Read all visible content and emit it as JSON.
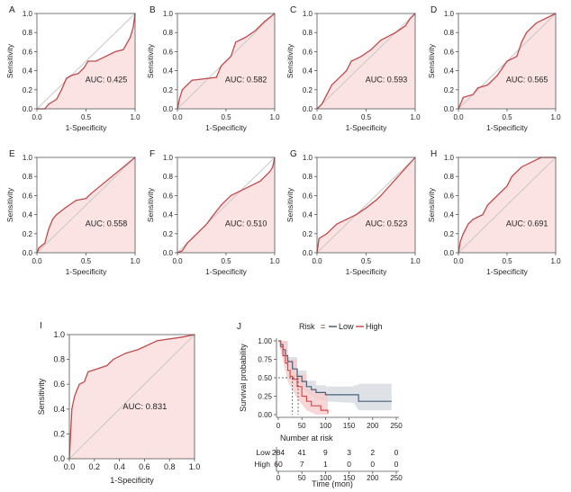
{
  "colors": {
    "roc_line": "#c24a4a",
    "roc_fill": "#fbe3e3",
    "diagonal": "#c8c8c8",
    "axis": "#555555",
    "low": "#4a5f7a",
    "high": "#d84a4a",
    "low_band": "#d3d7de",
    "high_band": "#f7c9c9"
  },
  "chart_data": [
    {
      "type": "line",
      "panel": "A",
      "xlabel": "1-Specificity",
      "ylabel": "Sensitivity",
      "auc_text": "AUC: 0.425",
      "xlim": [
        0,
        1
      ],
      "ylim": [
        0,
        1
      ],
      "xticks": [
        "0.0",
        "0.5",
        "1.0"
      ],
      "yticks": [
        "0.0",
        "0.2",
        "0.4",
        "0.6",
        "0.8",
        "1.0"
      ],
      "points": [
        [
          0,
          0
        ],
        [
          0.08,
          0
        ],
        [
          0.12,
          0.05
        ],
        [
          0.2,
          0.1
        ],
        [
          0.25,
          0.2
        ],
        [
          0.3,
          0.32
        ],
        [
          0.35,
          0.35
        ],
        [
          0.42,
          0.37
        ],
        [
          0.48,
          0.43
        ],
        [
          0.52,
          0.5
        ],
        [
          0.6,
          0.5
        ],
        [
          0.7,
          0.55
        ],
        [
          0.8,
          0.6
        ],
        [
          0.88,
          0.62
        ],
        [
          0.95,
          0.75
        ],
        [
          0.98,
          0.85
        ],
        [
          1,
          1
        ]
      ]
    },
    {
      "type": "line",
      "panel": "B",
      "xlabel": "1-Specificity",
      "ylabel": "Sensitivity",
      "auc_text": "AUC: 0.582",
      "xlim": [
        0,
        1
      ],
      "ylim": [
        0,
        1
      ],
      "xticks": [
        "0.0",
        "0.5",
        "1.0"
      ],
      "yticks": [
        "0.0",
        "0.2",
        "0.4",
        "0.6",
        "0.8",
        "1.0"
      ],
      "points": [
        [
          0,
          0
        ],
        [
          0.02,
          0.1
        ],
        [
          0.05,
          0.2
        ],
        [
          0.1,
          0.25
        ],
        [
          0.15,
          0.3
        ],
        [
          0.4,
          0.33
        ],
        [
          0.45,
          0.45
        ],
        [
          0.5,
          0.5
        ],
        [
          0.55,
          0.55
        ],
        [
          0.6,
          0.7
        ],
        [
          0.7,
          0.75
        ],
        [
          0.8,
          0.82
        ],
        [
          0.9,
          0.92
        ],
        [
          1,
          1
        ]
      ]
    },
    {
      "type": "line",
      "panel": "C",
      "xlabel": "1-Specificity",
      "ylabel": "Sensitivity",
      "auc_text": "AUC: 0.593",
      "xlim": [
        0,
        1
      ],
      "ylim": [
        0,
        1
      ],
      "xticks": [
        "0.0",
        "0.5",
        "1.0"
      ],
      "yticks": [
        "0.0",
        "0.2",
        "0.4",
        "0.6",
        "0.8",
        "1.0"
      ],
      "points": [
        [
          0,
          0
        ],
        [
          0.05,
          0.05
        ],
        [
          0.1,
          0.15
        ],
        [
          0.15,
          0.25
        ],
        [
          0.2,
          0.3
        ],
        [
          0.3,
          0.4
        ],
        [
          0.35,
          0.5
        ],
        [
          0.45,
          0.55
        ],
        [
          0.55,
          0.62
        ],
        [
          0.65,
          0.72
        ],
        [
          0.8,
          0.8
        ],
        [
          0.9,
          0.87
        ],
        [
          0.95,
          0.95
        ],
        [
          1,
          1
        ]
      ]
    },
    {
      "type": "line",
      "panel": "D",
      "xlabel": "1-Specificity",
      "ylabel": "Sensitivity",
      "auc_text": "AUC: 0.565",
      "xlim": [
        0,
        1
      ],
      "ylim": [
        0,
        1
      ],
      "xticks": [
        "0.0",
        "0.5",
        "1.0"
      ],
      "yticks": [
        "0.0",
        "0.2",
        "0.4",
        "0.6",
        "0.8",
        "1.0"
      ],
      "points": [
        [
          0,
          0
        ],
        [
          0.02,
          0.05
        ],
        [
          0.05,
          0.12
        ],
        [
          0.15,
          0.15
        ],
        [
          0.2,
          0.22
        ],
        [
          0.3,
          0.25
        ],
        [
          0.4,
          0.35
        ],
        [
          0.5,
          0.5
        ],
        [
          0.6,
          0.55
        ],
        [
          0.65,
          0.7
        ],
        [
          0.7,
          0.8
        ],
        [
          0.8,
          0.9
        ],
        [
          0.9,
          0.95
        ],
        [
          1,
          1
        ]
      ]
    },
    {
      "type": "line",
      "panel": "E",
      "xlabel": "1-Specificity",
      "ylabel": "Sensitivity",
      "auc_text": "AUC: 0.558",
      "xlim": [
        0,
        1
      ],
      "ylim": [
        0,
        1
      ],
      "xticks": [
        "0.0",
        "0.5",
        "1.0"
      ],
      "yticks": [
        "0.0",
        "0.2",
        "0.4",
        "0.6",
        "0.8",
        "1.0"
      ],
      "points": [
        [
          0,
          0
        ],
        [
          0.02,
          0.05
        ],
        [
          0.08,
          0.1
        ],
        [
          0.12,
          0.25
        ],
        [
          0.16,
          0.35
        ],
        [
          0.2,
          0.4
        ],
        [
          0.3,
          0.48
        ],
        [
          0.4,
          0.55
        ],
        [
          0.5,
          0.57
        ],
        [
          0.55,
          0.62
        ],
        [
          1,
          1
        ]
      ]
    },
    {
      "type": "line",
      "panel": "F",
      "xlabel": "1-Specificity",
      "ylabel": "Sensitivity",
      "auc_text": "AUC: 0.510",
      "xlim": [
        0,
        1
      ],
      "ylim": [
        0,
        1
      ],
      "xticks": [
        "0.0",
        "0.5",
        "1.0"
      ],
      "yticks": [
        "0.0",
        "0.2",
        "0.4",
        "0.6",
        "0.8",
        "1.0"
      ],
      "points": [
        [
          0,
          0
        ],
        [
          0.05,
          0.02
        ],
        [
          0.1,
          0.1
        ],
        [
          0.2,
          0.2
        ],
        [
          0.3,
          0.3
        ],
        [
          0.35,
          0.37
        ],
        [
          0.45,
          0.5
        ],
        [
          0.55,
          0.6
        ],
        [
          0.65,
          0.65
        ],
        [
          0.75,
          0.7
        ],
        [
          0.85,
          0.75
        ],
        [
          0.95,
          0.85
        ],
        [
          0.98,
          0.9
        ],
        [
          1,
          1
        ]
      ]
    },
    {
      "type": "line",
      "panel": "G",
      "xlabel": "1-Specificity",
      "ylabel": "Sensitivity",
      "auc_text": "AUC: 0.523",
      "xlim": [
        0,
        1
      ],
      "ylim": [
        0,
        1
      ],
      "xticks": [
        "0.0",
        "0.5",
        "1.0"
      ],
      "yticks": [
        "0.0",
        "0.2",
        "0.4",
        "0.6",
        "0.8",
        "1.0"
      ],
      "points": [
        [
          0,
          0
        ],
        [
          0.02,
          0.15
        ],
        [
          0.1,
          0.2
        ],
        [
          0.2,
          0.3
        ],
        [
          0.3,
          0.35
        ],
        [
          0.4,
          0.4
        ],
        [
          0.5,
          0.47
        ],
        [
          0.6,
          0.55
        ],
        [
          0.65,
          0.6
        ],
        [
          1,
          1
        ]
      ]
    },
    {
      "type": "line",
      "panel": "H",
      "xlabel": "1-Specificity",
      "ylabel": "Sensitivity",
      "auc_text": "AUC: 0.691",
      "xlim": [
        0,
        1
      ],
      "ylim": [
        0,
        1
      ],
      "xticks": [
        "0.0",
        "0.5",
        "1.0"
      ],
      "yticks": [
        "0.0",
        "0.2",
        "0.4",
        "0.6",
        "0.8",
        "1.0"
      ],
      "points": [
        [
          0,
          0
        ],
        [
          0.02,
          0.12
        ],
        [
          0.05,
          0.2
        ],
        [
          0.1,
          0.3
        ],
        [
          0.15,
          0.35
        ],
        [
          0.25,
          0.4
        ],
        [
          0.3,
          0.5
        ],
        [
          0.4,
          0.6
        ],
        [
          0.5,
          0.7
        ],
        [
          0.55,
          0.8
        ],
        [
          0.65,
          0.9
        ],
        [
          0.75,
          0.95
        ],
        [
          0.85,
          1
        ],
        [
          1,
          1
        ]
      ]
    },
    {
      "type": "line",
      "panel": "I",
      "xlabel": "1-Specificity",
      "ylabel": "Sensitivity",
      "auc_text": "AUC: 0.831",
      "xlim": [
        0,
        1
      ],
      "ylim": [
        0,
        1
      ],
      "xticks": [
        "0.0",
        "0.2",
        "0.4",
        "0.6",
        "0.8",
        "1.0"
      ],
      "yticks": [
        "0.0",
        "0.2",
        "0.4",
        "0.6",
        "0.8",
        "1.0"
      ],
      "points": [
        [
          0,
          0
        ],
        [
          0.01,
          0.2
        ],
        [
          0.02,
          0.4
        ],
        [
          0.04,
          0.5
        ],
        [
          0.06,
          0.55
        ],
        [
          0.08,
          0.6
        ],
        [
          0.12,
          0.62
        ],
        [
          0.15,
          0.7
        ],
        [
          0.3,
          0.75
        ],
        [
          0.35,
          0.8
        ],
        [
          0.45,
          0.85
        ],
        [
          0.55,
          0.88
        ],
        [
          0.7,
          0.95
        ],
        [
          0.9,
          0.98
        ],
        [
          1,
          1
        ]
      ]
    },
    {
      "type": "line",
      "panel": "J",
      "subtype": "kaplan-meier",
      "legend_title": "Risk",
      "legend_eq": "=",
      "legend": [
        "Low",
        "High"
      ],
      "ylabel": "Survival probability",
      "xlabel": "Time (mon)",
      "xlim": [
        0,
        250
      ],
      "ylim": [
        0,
        1
      ],
      "xticks": [
        "0",
        "50",
        "100",
        "150",
        "200",
        "250"
      ],
      "yticks": [
        "0.00",
        "0.25",
        "0.50",
        "0.75",
        "1.00"
      ],
      "median_line": {
        "y": 0.5,
        "x_high": 30,
        "x_low": 42
      },
      "series": [
        {
          "name": "Low",
          "points": [
            [
              0,
              1
            ],
            [
              5,
              0.95
            ],
            [
              10,
              0.88
            ],
            [
              15,
              0.8
            ],
            [
              20,
              0.72
            ],
            [
              30,
              0.62
            ],
            [
              40,
              0.52
            ],
            [
              50,
              0.45
            ],
            [
              60,
              0.38
            ],
            [
              70,
              0.34
            ],
            [
              80,
              0.3
            ],
            [
              100,
              0.27
            ],
            [
              160,
              0.27
            ],
            [
              170,
              0.18
            ],
            [
              240,
              0.18
            ]
          ],
          "band_upper": [
            [
              0,
              1
            ],
            [
              20,
              0.78
            ],
            [
              40,
              0.6
            ],
            [
              60,
              0.46
            ],
            [
              80,
              0.4
            ],
            [
              100,
              0.38
            ],
            [
              160,
              0.4
            ],
            [
              170,
              0.42
            ],
            [
              240,
              0.42
            ]
          ],
          "band_lower": [
            [
              0,
              1
            ],
            [
              20,
              0.66
            ],
            [
              40,
              0.46
            ],
            [
              60,
              0.3
            ],
            [
              80,
              0.22
            ],
            [
              100,
              0.18
            ],
            [
              160,
              0.16
            ],
            [
              170,
              0.06
            ],
            [
              240,
              0.06
            ]
          ]
        },
        {
          "name": "High",
          "points": [
            [
              0,
              1
            ],
            [
              5,
              0.92
            ],
            [
              10,
              0.8
            ],
            [
              15,
              0.7
            ],
            [
              20,
              0.6
            ],
            [
              25,
              0.52
            ],
            [
              30,
              0.48
            ],
            [
              40,
              0.38
            ],
            [
              50,
              0.25
            ],
            [
              60,
              0.18
            ],
            [
              70,
              0.12
            ],
            [
              90,
              0.06
            ],
            [
              105,
              0.02
            ]
          ],
          "band_upper": [
            [
              0,
              1
            ],
            [
              20,
              0.75
            ],
            [
              40,
              0.55
            ],
            [
              60,
              0.35
            ],
            [
              80,
              0.3
            ],
            [
              105,
              0.3
            ]
          ],
          "band_lower": [
            [
              0,
              1
            ],
            [
              20,
              0.45
            ],
            [
              40,
              0.22
            ],
            [
              60,
              0.06
            ],
            [
              80,
              0
            ],
            [
              105,
              0
            ]
          ]
        }
      ],
      "risk_table": {
        "title": "Number at risk",
        "rows": [
          {
            "name": "Low",
            "values": [
              "284",
              "41",
              "9",
              "3",
              "2",
              "0"
            ]
          },
          {
            "name": "High",
            "values": [
              "60",
              "7",
              "1",
              "0",
              "0",
              "0"
            ]
          }
        ],
        "times": [
          0,
          50,
          100,
          150,
          200,
          250
        ]
      }
    }
  ]
}
